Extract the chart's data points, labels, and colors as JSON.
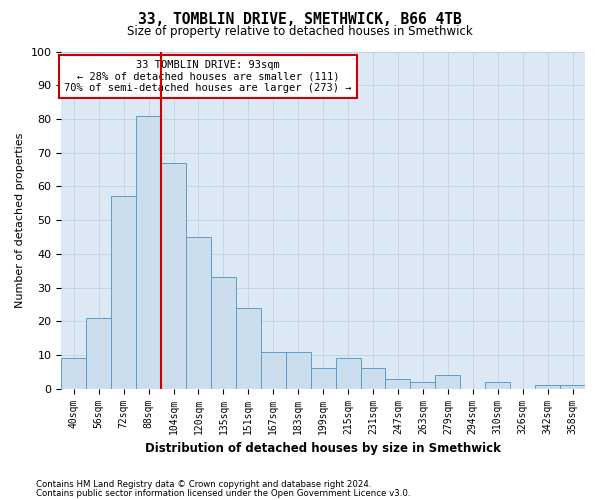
{
  "title1": "33, TOMBLIN DRIVE, SMETHWICK, B66 4TB",
  "title2": "Size of property relative to detached houses in Smethwick",
  "xlabel": "Distribution of detached houses by size in Smethwick",
  "ylabel": "Number of detached properties",
  "categories": [
    "40sqm",
    "56sqm",
    "72sqm",
    "88sqm",
    "104sqm",
    "120sqm",
    "135sqm",
    "151sqm",
    "167sqm",
    "183sqm",
    "199sqm",
    "215sqm",
    "231sqm",
    "247sqm",
    "263sqm",
    "279sqm",
    "294sqm",
    "310sqm",
    "326sqm",
    "342sqm",
    "358sqm"
  ],
  "values": [
    9,
    21,
    57,
    81,
    67,
    45,
    33,
    24,
    11,
    11,
    6,
    9,
    6,
    3,
    2,
    4,
    0,
    2,
    0,
    1,
    1
  ],
  "bar_color": "#ccdded",
  "bar_edge_color": "#5a9ec8",
  "marker_line_color": "#cc0000",
  "annotation_text": "33 TOMBLIN DRIVE: 93sqm\n← 28% of detached houses are smaller (111)\n70% of semi-detached houses are larger (273) →",
  "annotation_box_edge_color": "#cc0000",
  "annotation_box_face_color": "#ffffff",
  "ylim": [
    0,
    100
  ],
  "yticks": [
    0,
    10,
    20,
    30,
    40,
    50,
    60,
    70,
    80,
    90,
    100
  ],
  "footnote1": "Contains HM Land Registry data © Crown copyright and database right 2024.",
  "footnote2": "Contains public sector information licensed under the Open Government Licence v3.0.",
  "figure_bg_color": "#ffffff",
  "plot_bg_color": "#dce9f5",
  "grid_color": "#b8cfe0"
}
